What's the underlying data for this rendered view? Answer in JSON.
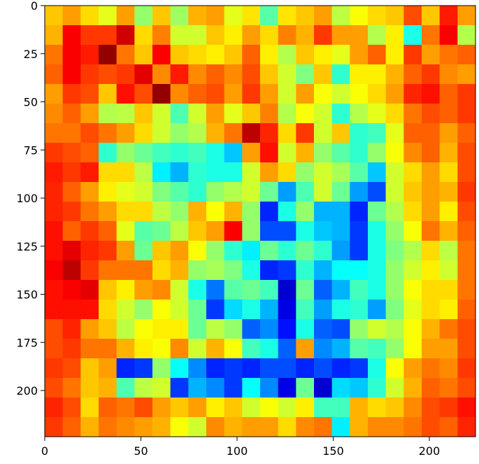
{
  "chart_data": {
    "type": "heatmap",
    "colormap": "jet",
    "value_range": [
      0,
      1
    ],
    "xlim": [
      0,
      224
    ],
    "ylim": [
      224,
      0
    ],
    "x_ticks": [
      0,
      50,
      100,
      150,
      200
    ],
    "y_ticks": [
      0,
      25,
      50,
      75,
      100,
      125,
      150,
      175,
      200
    ],
    "x_tick_labels": [
      "0",
      "50",
      "100",
      "150",
      "200"
    ],
    "y_tick_labels": [
      "0",
      "25",
      "50",
      "75",
      "100",
      "125",
      "150",
      "175",
      "200"
    ],
    "grid": false,
    "cell_size": 9.33,
    "values": [
      [
        0.68,
        0.72,
        0.66,
        0.6,
        0.72,
        0.52,
        0.68,
        0.53,
        0.7,
        0.72,
        0.6,
        0.65,
        0.46,
        0.65,
        0.68,
        0.72,
        0.56,
        0.62,
        0.66,
        0.68,
        0.8,
        0.68,
        0.85,
        0.72
      ],
      [
        0.7,
        0.88,
        0.82,
        0.82,
        0.92,
        0.66,
        0.75,
        0.58,
        0.58,
        0.68,
        0.64,
        0.72,
        0.66,
        0.75,
        0.7,
        0.82,
        0.72,
        0.72,
        0.55,
        0.64,
        0.4,
        0.76,
        0.88,
        0.55
      ],
      [
        0.76,
        0.88,
        0.85,
        0.98,
        0.76,
        0.68,
        0.88,
        0.68,
        0.66,
        0.64,
        0.68,
        0.78,
        0.64,
        0.55,
        0.68,
        0.64,
        0.6,
        0.72,
        0.78,
        0.64,
        0.82,
        0.72,
        0.76,
        0.78
      ],
      [
        0.78,
        0.88,
        0.82,
        0.8,
        0.82,
        0.9,
        0.74,
        0.85,
        0.74,
        0.78,
        0.74,
        0.8,
        0.68,
        0.58,
        0.5,
        0.68,
        0.42,
        0.64,
        0.64,
        0.7,
        0.78,
        0.82,
        0.74,
        0.72
      ],
      [
        0.72,
        0.82,
        0.8,
        0.68,
        0.86,
        0.8,
        0.98,
        0.74,
        0.78,
        0.8,
        0.72,
        0.82,
        0.72,
        0.58,
        0.72,
        0.62,
        0.58,
        0.62,
        0.66,
        0.72,
        0.84,
        0.86,
        0.78,
        0.82
      ],
      [
        0.74,
        0.78,
        0.72,
        0.55,
        0.56,
        0.68,
        0.58,
        0.45,
        0.58,
        0.72,
        0.6,
        0.68,
        0.75,
        0.55,
        0.62,
        0.58,
        0.42,
        0.55,
        0.6,
        0.66,
        0.76,
        0.8,
        0.78,
        0.82
      ],
      [
        0.76,
        0.76,
        0.8,
        0.76,
        0.72,
        0.66,
        0.58,
        0.52,
        0.55,
        0.7,
        0.76,
        0.94,
        0.84,
        0.66,
        0.82,
        0.58,
        0.68,
        0.42,
        0.44,
        0.6,
        0.78,
        0.78,
        0.72,
        0.78
      ],
      [
        0.82,
        0.8,
        0.78,
        0.42,
        0.52,
        0.48,
        0.44,
        0.42,
        0.44,
        0.4,
        0.32,
        0.72,
        0.86,
        0.58,
        0.7,
        0.52,
        0.46,
        0.42,
        0.52,
        0.62,
        0.74,
        0.78,
        0.7,
        0.8
      ],
      [
        0.85,
        0.82,
        0.85,
        0.66,
        0.66,
        0.56,
        0.36,
        0.3,
        0.42,
        0.4,
        0.4,
        0.58,
        0.72,
        0.66,
        0.52,
        0.58,
        0.54,
        0.46,
        0.32,
        0.58,
        0.66,
        0.72,
        0.66,
        0.8
      ],
      [
        0.84,
        0.78,
        0.72,
        0.64,
        0.6,
        0.58,
        0.5,
        0.46,
        0.42,
        0.52,
        0.55,
        0.58,
        0.48,
        0.28,
        0.45,
        0.58,
        0.48,
        0.28,
        0.2,
        0.58,
        0.68,
        0.72,
        0.7,
        0.82
      ],
      [
        0.84,
        0.82,
        0.76,
        0.72,
        0.66,
        0.66,
        0.56,
        0.52,
        0.7,
        0.62,
        0.7,
        0.52,
        0.16,
        0.4,
        0.52,
        0.3,
        0.3,
        0.16,
        0.48,
        0.55,
        0.66,
        0.72,
        0.64,
        0.8
      ],
      [
        0.86,
        0.78,
        0.82,
        0.78,
        0.6,
        0.46,
        0.48,
        0.56,
        0.68,
        0.72,
        0.88,
        0.52,
        0.2,
        0.2,
        0.4,
        0.32,
        0.3,
        0.18,
        0.4,
        0.52,
        0.62,
        0.76,
        0.7,
        0.78
      ],
      [
        0.86,
        0.9,
        0.84,
        0.82,
        0.72,
        0.48,
        0.68,
        0.72,
        0.62,
        0.52,
        0.42,
        0.36,
        0.48,
        0.42,
        0.48,
        0.42,
        0.28,
        0.18,
        0.4,
        0.5,
        0.55,
        0.66,
        0.56,
        0.76
      ],
      [
        0.88,
        0.94,
        0.82,
        0.76,
        0.76,
        0.76,
        0.66,
        0.7,
        0.52,
        0.54,
        0.5,
        0.4,
        0.16,
        0.18,
        0.42,
        0.3,
        0.38,
        0.38,
        0.4,
        0.52,
        0.58,
        0.64,
        0.58,
        0.76
      ],
      [
        0.86,
        0.88,
        0.9,
        0.68,
        0.64,
        0.72,
        0.74,
        0.58,
        0.4,
        0.24,
        0.46,
        0.48,
        0.44,
        0.08,
        0.48,
        0.22,
        0.3,
        0.44,
        0.4,
        0.52,
        0.62,
        0.66,
        0.66,
        0.76
      ],
      [
        0.86,
        0.86,
        0.86,
        0.66,
        0.58,
        0.52,
        0.62,
        0.58,
        0.48,
        0.18,
        0.34,
        0.4,
        0.3,
        0.1,
        0.44,
        0.28,
        0.4,
        0.42,
        0.28,
        0.5,
        0.6,
        0.66,
        0.64,
        0.78
      ],
      [
        0.8,
        0.84,
        0.72,
        0.68,
        0.56,
        0.62,
        0.64,
        0.64,
        0.48,
        0.56,
        0.52,
        0.22,
        0.26,
        0.14,
        0.4,
        0.22,
        0.2,
        0.52,
        0.58,
        0.55,
        0.62,
        0.7,
        0.76,
        0.8
      ],
      [
        0.8,
        0.82,
        0.76,
        0.76,
        0.7,
        0.64,
        0.62,
        0.74,
        0.58,
        0.7,
        0.62,
        0.44,
        0.4,
        0.22,
        0.72,
        0.26,
        0.3,
        0.46,
        0.44,
        0.52,
        0.62,
        0.72,
        0.72,
        0.8
      ],
      [
        0.82,
        0.8,
        0.68,
        0.72,
        0.16,
        0.18,
        0.52,
        0.38,
        0.26,
        0.16,
        0.18,
        0.16,
        0.2,
        0.2,
        0.16,
        0.2,
        0.16,
        0.18,
        0.4,
        0.62,
        0.72,
        0.76,
        0.74,
        0.82
      ],
      [
        0.8,
        0.76,
        0.68,
        0.7,
        0.45,
        0.56,
        0.58,
        0.18,
        0.3,
        0.26,
        0.18,
        0.38,
        0.26,
        0.1,
        0.48,
        0.08,
        0.34,
        0.32,
        0.42,
        0.58,
        0.7,
        0.78,
        0.76,
        0.8
      ],
      [
        0.84,
        0.8,
        0.66,
        0.78,
        0.76,
        0.8,
        0.72,
        0.68,
        0.72,
        0.64,
        0.68,
        0.58,
        0.62,
        0.58,
        0.64,
        0.44,
        0.44,
        0.7,
        0.66,
        0.68,
        0.74,
        0.8,
        0.82,
        0.86
      ],
      [
        0.82,
        0.78,
        0.7,
        0.76,
        0.74,
        0.72,
        0.7,
        0.62,
        0.58,
        0.74,
        0.7,
        0.72,
        0.72,
        0.66,
        0.74,
        0.76,
        0.36,
        0.7,
        0.74,
        0.74,
        0.76,
        0.8,
        0.78,
        0.84
      ]
    ]
  }
}
